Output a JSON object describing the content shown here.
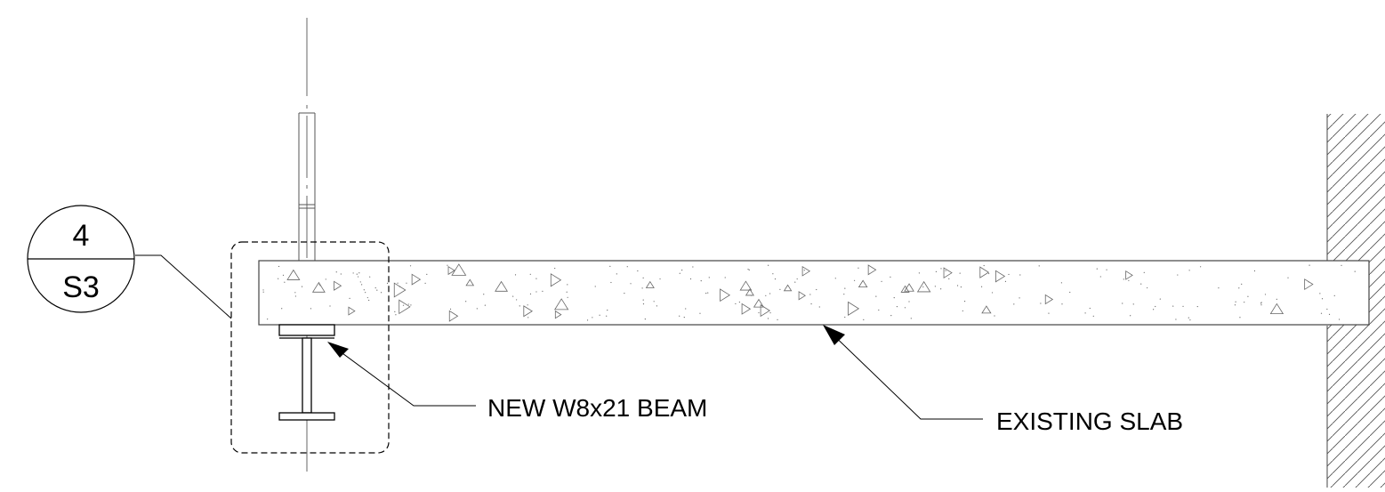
{
  "detail_tag": {
    "number": "4",
    "sheet": "S3"
  },
  "callouts": {
    "beam": "NEW W8x21 BEAM",
    "slab": "EXISTING SLAB"
  }
}
